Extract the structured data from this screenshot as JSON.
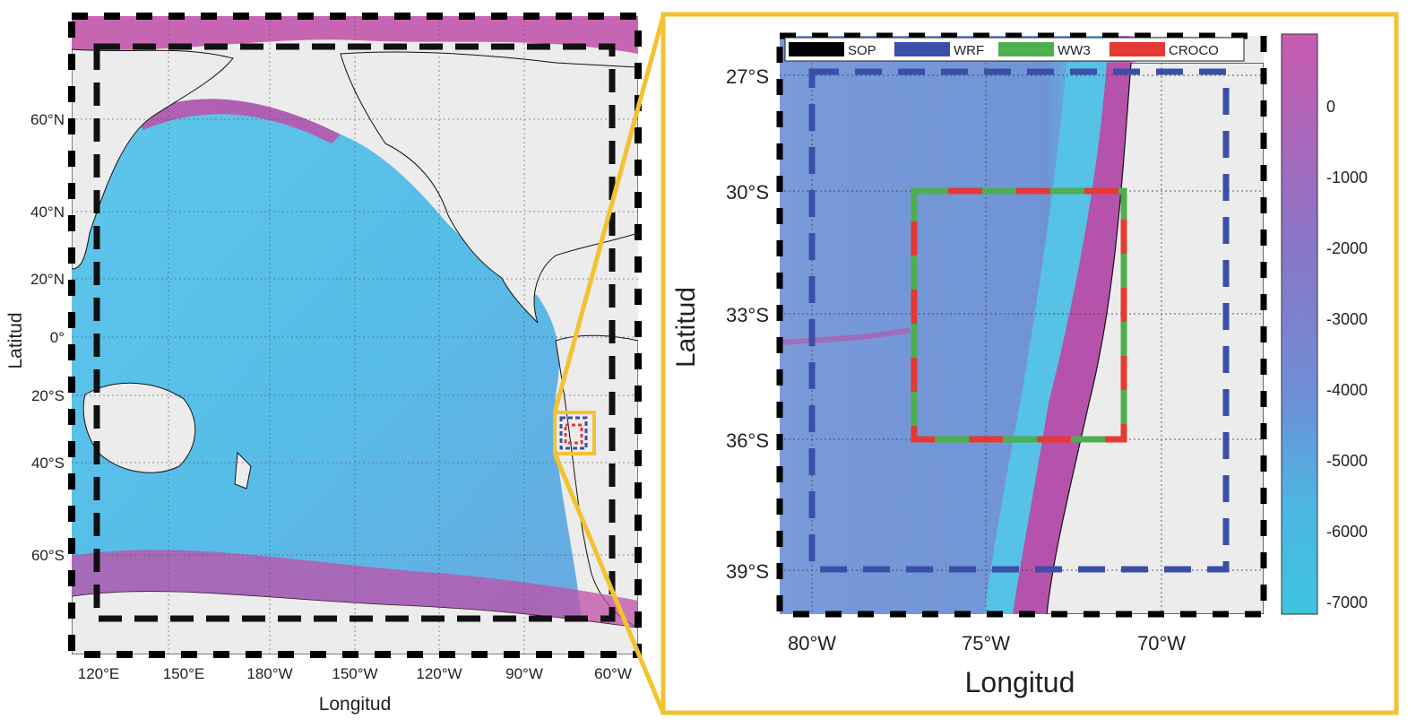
{
  "left_map": {
    "xlabel": "Longitud",
    "ylabel": "Latitud",
    "lon_ticks": [
      "120°E",
      "150°E",
      "180°W",
      "150°W",
      "120°W",
      "90°W",
      "60°W"
    ],
    "lat_ticks": [
      "60°N",
      "40°N",
      "20°N",
      "0°",
      "20°S",
      "40°S",
      "60°S"
    ]
  },
  "right_map": {
    "xlabel": "Longitud",
    "ylabel": "Latitud",
    "lon_ticks": [
      "80°W",
      "75°W",
      "70°W"
    ],
    "lat_ticks": [
      "27°S",
      "30°S",
      "33°S",
      "36°S",
      "39°S"
    ],
    "legend": [
      {
        "name": "SOP",
        "color": "#000000"
      },
      {
        "name": "WRF",
        "color": "#3b4ea8"
      },
      {
        "name": "WW3",
        "color": "#4caf50"
      },
      {
        "name": "CROCO",
        "color": "#e53935"
      }
    ]
  },
  "colorbar": {
    "ticks": [
      "0",
      "-1000",
      "-2000",
      "-3000",
      "-4000",
      "-5000",
      "-6000",
      "-7000"
    ],
    "colors": {
      "top": "#c95bb0",
      "mid": "#6e8ed6",
      "bottom": "#3fc4dd"
    }
  },
  "colors": {
    "land": "#ececec",
    "ocean": "#55c0e8",
    "shelf": "#c04fa8",
    "highlight": "#f2c231"
  }
}
